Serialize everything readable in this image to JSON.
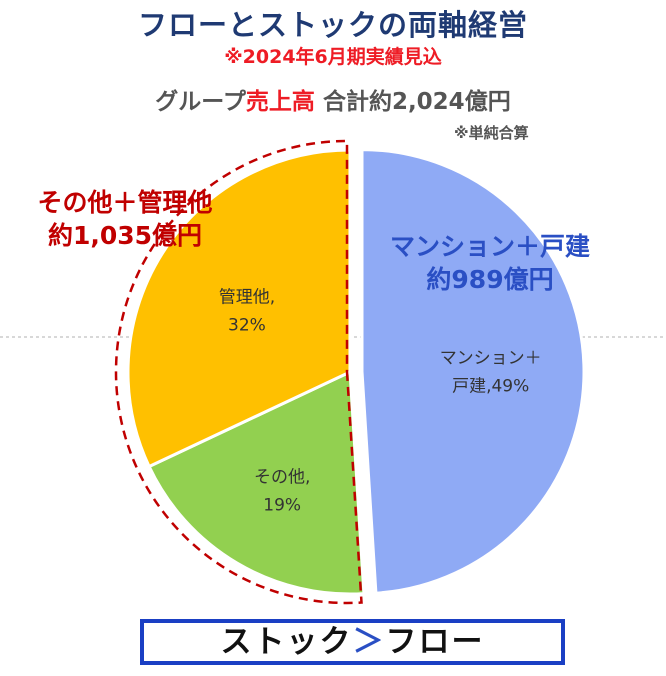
{
  "title": "フローとストックの両軸経営",
  "subtitle": "※2024年6月期実績見込",
  "sales": {
    "prefix": "グループ",
    "highlight": "売上高",
    "total": "合計約2,024億円"
  },
  "note": "※単純合算",
  "annotations": {
    "left_line1": "その他＋管理他",
    "left_line2": "約1,035億円",
    "right_line1": "マンション＋戸建",
    "right_line2": "約989億円"
  },
  "bottom": {
    "left": "ストック",
    "symbol": "＞",
    "right": "フロー"
  },
  "colors": {
    "mansion": "#8faaf5",
    "other": "#92d050",
    "management": "#ffc000",
    "red": "#c00000",
    "blue": "#2a4fc4"
  },
  "chart_data": {
    "type": "pie",
    "series": [
      {
        "name": "マンション＋戸建",
        "value": 49,
        "label_line1": "マンション＋",
        "label_line2": "戸建,49%",
        "color": "#8faaf5"
      },
      {
        "name": "その他",
        "value": 19,
        "label_line1": "その他,",
        "label_line2": "19%",
        "color": "#92d050"
      },
      {
        "name": "管理他",
        "value": 32,
        "label_line1": "管理他,",
        "label_line2": "32%",
        "color": "#ffc000"
      }
    ]
  }
}
